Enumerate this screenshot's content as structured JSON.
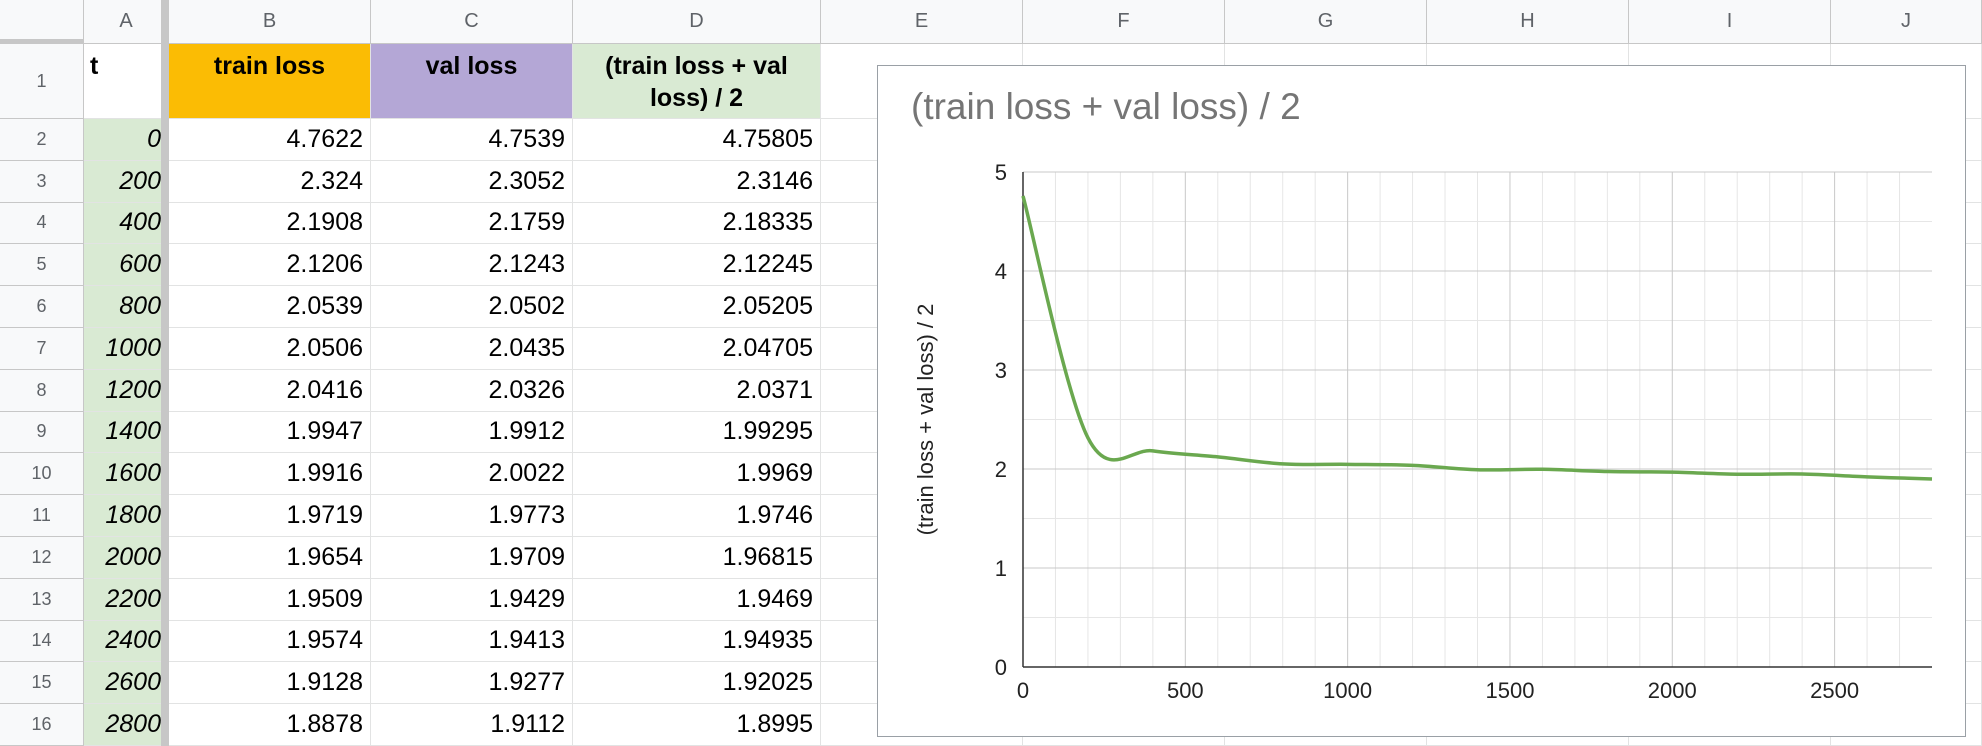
{
  "columns": [
    "A",
    "B",
    "C",
    "D",
    "E",
    "F",
    "G",
    "H",
    "I",
    "J"
  ],
  "header_row": {
    "a": "t",
    "b": "train loss",
    "c": "val loss",
    "d": "(train loss + val loss) / 2",
    "colors": {
      "b": "#fbbc04",
      "c": "#b4a7d6",
      "d": "#d9ead3"
    }
  },
  "rows": [
    {
      "n": "2",
      "t": "0",
      "train": "4.7622",
      "val": "4.7539",
      "avg": "4.75805"
    },
    {
      "n": "3",
      "t": "200",
      "train": "2.324",
      "val": "2.3052",
      "avg": "2.3146"
    },
    {
      "n": "4",
      "t": "400",
      "train": "2.1908",
      "val": "2.1759",
      "avg": "2.18335"
    },
    {
      "n": "5",
      "t": "600",
      "train": "2.1206",
      "val": "2.1243",
      "avg": "2.12245"
    },
    {
      "n": "6",
      "t": "800",
      "train": "2.0539",
      "val": "2.0502",
      "avg": "2.05205"
    },
    {
      "n": "7",
      "t": "1000",
      "train": "2.0506",
      "val": "2.0435",
      "avg": "2.04705"
    },
    {
      "n": "8",
      "t": "1200",
      "train": "2.0416",
      "val": "2.0326",
      "avg": "2.0371"
    },
    {
      "n": "9",
      "t": "1400",
      "train": "1.9947",
      "val": "1.9912",
      "avg": "1.99295"
    },
    {
      "n": "10",
      "t": "1600",
      "train": "1.9916",
      "val": "2.0022",
      "avg": "1.9969"
    },
    {
      "n": "11",
      "t": "1800",
      "train": "1.9719",
      "val": "1.9773",
      "avg": "1.9746"
    },
    {
      "n": "12",
      "t": "2000",
      "train": "1.9654",
      "val": "1.9709",
      "avg": "1.96815"
    },
    {
      "n": "13",
      "t": "2200",
      "train": "1.9509",
      "val": "1.9429",
      "avg": "1.9469"
    },
    {
      "n": "14",
      "t": "2400",
      "train": "1.9574",
      "val": "1.9413",
      "avg": "1.94935"
    },
    {
      "n": "15",
      "t": "2600",
      "train": "1.9128",
      "val": "1.9277",
      "avg": "1.92025"
    },
    {
      "n": "16",
      "t": "2800",
      "train": "1.8878",
      "val": "1.9112",
      "avg": "1.8995"
    }
  ],
  "chart_data": {
    "type": "line",
    "title": "(train loss + val loss) / 2",
    "xlabel": "",
    "ylabel": "(train loss + val loss) / 2",
    "x": [
      0,
      200,
      400,
      600,
      800,
      1000,
      1200,
      1400,
      1600,
      1800,
      2000,
      2200,
      2400,
      2600,
      2800
    ],
    "series": [
      {
        "values": [
          4.75805,
          2.3146,
          2.18335,
          2.12245,
          2.05205,
          2.04705,
          2.0371,
          1.99295,
          1.9969,
          1.9746,
          1.96815,
          1.9469,
          1.94935,
          1.92025,
          1.8995
        ],
        "color": "#6aa84f"
      }
    ],
    "xlim": [
      0,
      2800
    ],
    "ylim": [
      0,
      5
    ],
    "xticks": [
      0,
      500,
      1000,
      1500,
      2000,
      2500
    ],
    "yticks": [
      0,
      1,
      2,
      3,
      4,
      5
    ],
    "grid": true,
    "legend": "none"
  }
}
